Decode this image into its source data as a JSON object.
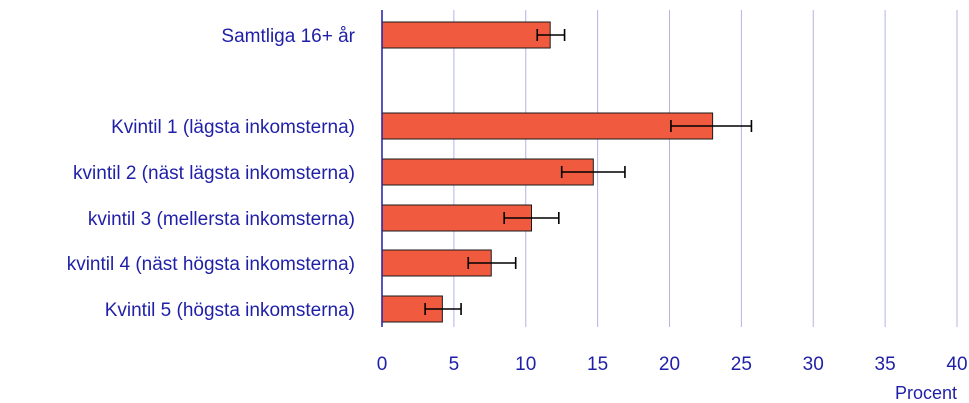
{
  "chart_data": {
    "type": "bar",
    "orientation": "horizontal",
    "categories": [
      "Samtliga 16+ år",
      "Kvintil 1 (lägsta inkomsterna)",
      "kvintil 2 (näst lägsta inkomsterna)",
      "kvintil 3 (mellersta inkomsterna)",
      "kvintil 4 (näst högsta inkomsterna)",
      "Kvintil 5 (högsta inkomsterna)"
    ],
    "values": [
      11.7,
      23.0,
      14.7,
      10.4,
      7.6,
      4.2
    ],
    "error_low": [
      10.8,
      20.1,
      12.5,
      8.5,
      6.0,
      3.0
    ],
    "error_high": [
      12.7,
      25.7,
      16.9,
      12.3,
      9.3,
      5.5
    ],
    "xlabel": "Procent",
    "xlim": [
      0,
      40
    ],
    "xticks": [
      0,
      5,
      10,
      15,
      20,
      25,
      30,
      35,
      40
    ],
    "grid": "vertical",
    "colors": {
      "bar": "#f05a3f",
      "text": "#1f1fa8",
      "grid": "#b3b3e6"
    }
  }
}
